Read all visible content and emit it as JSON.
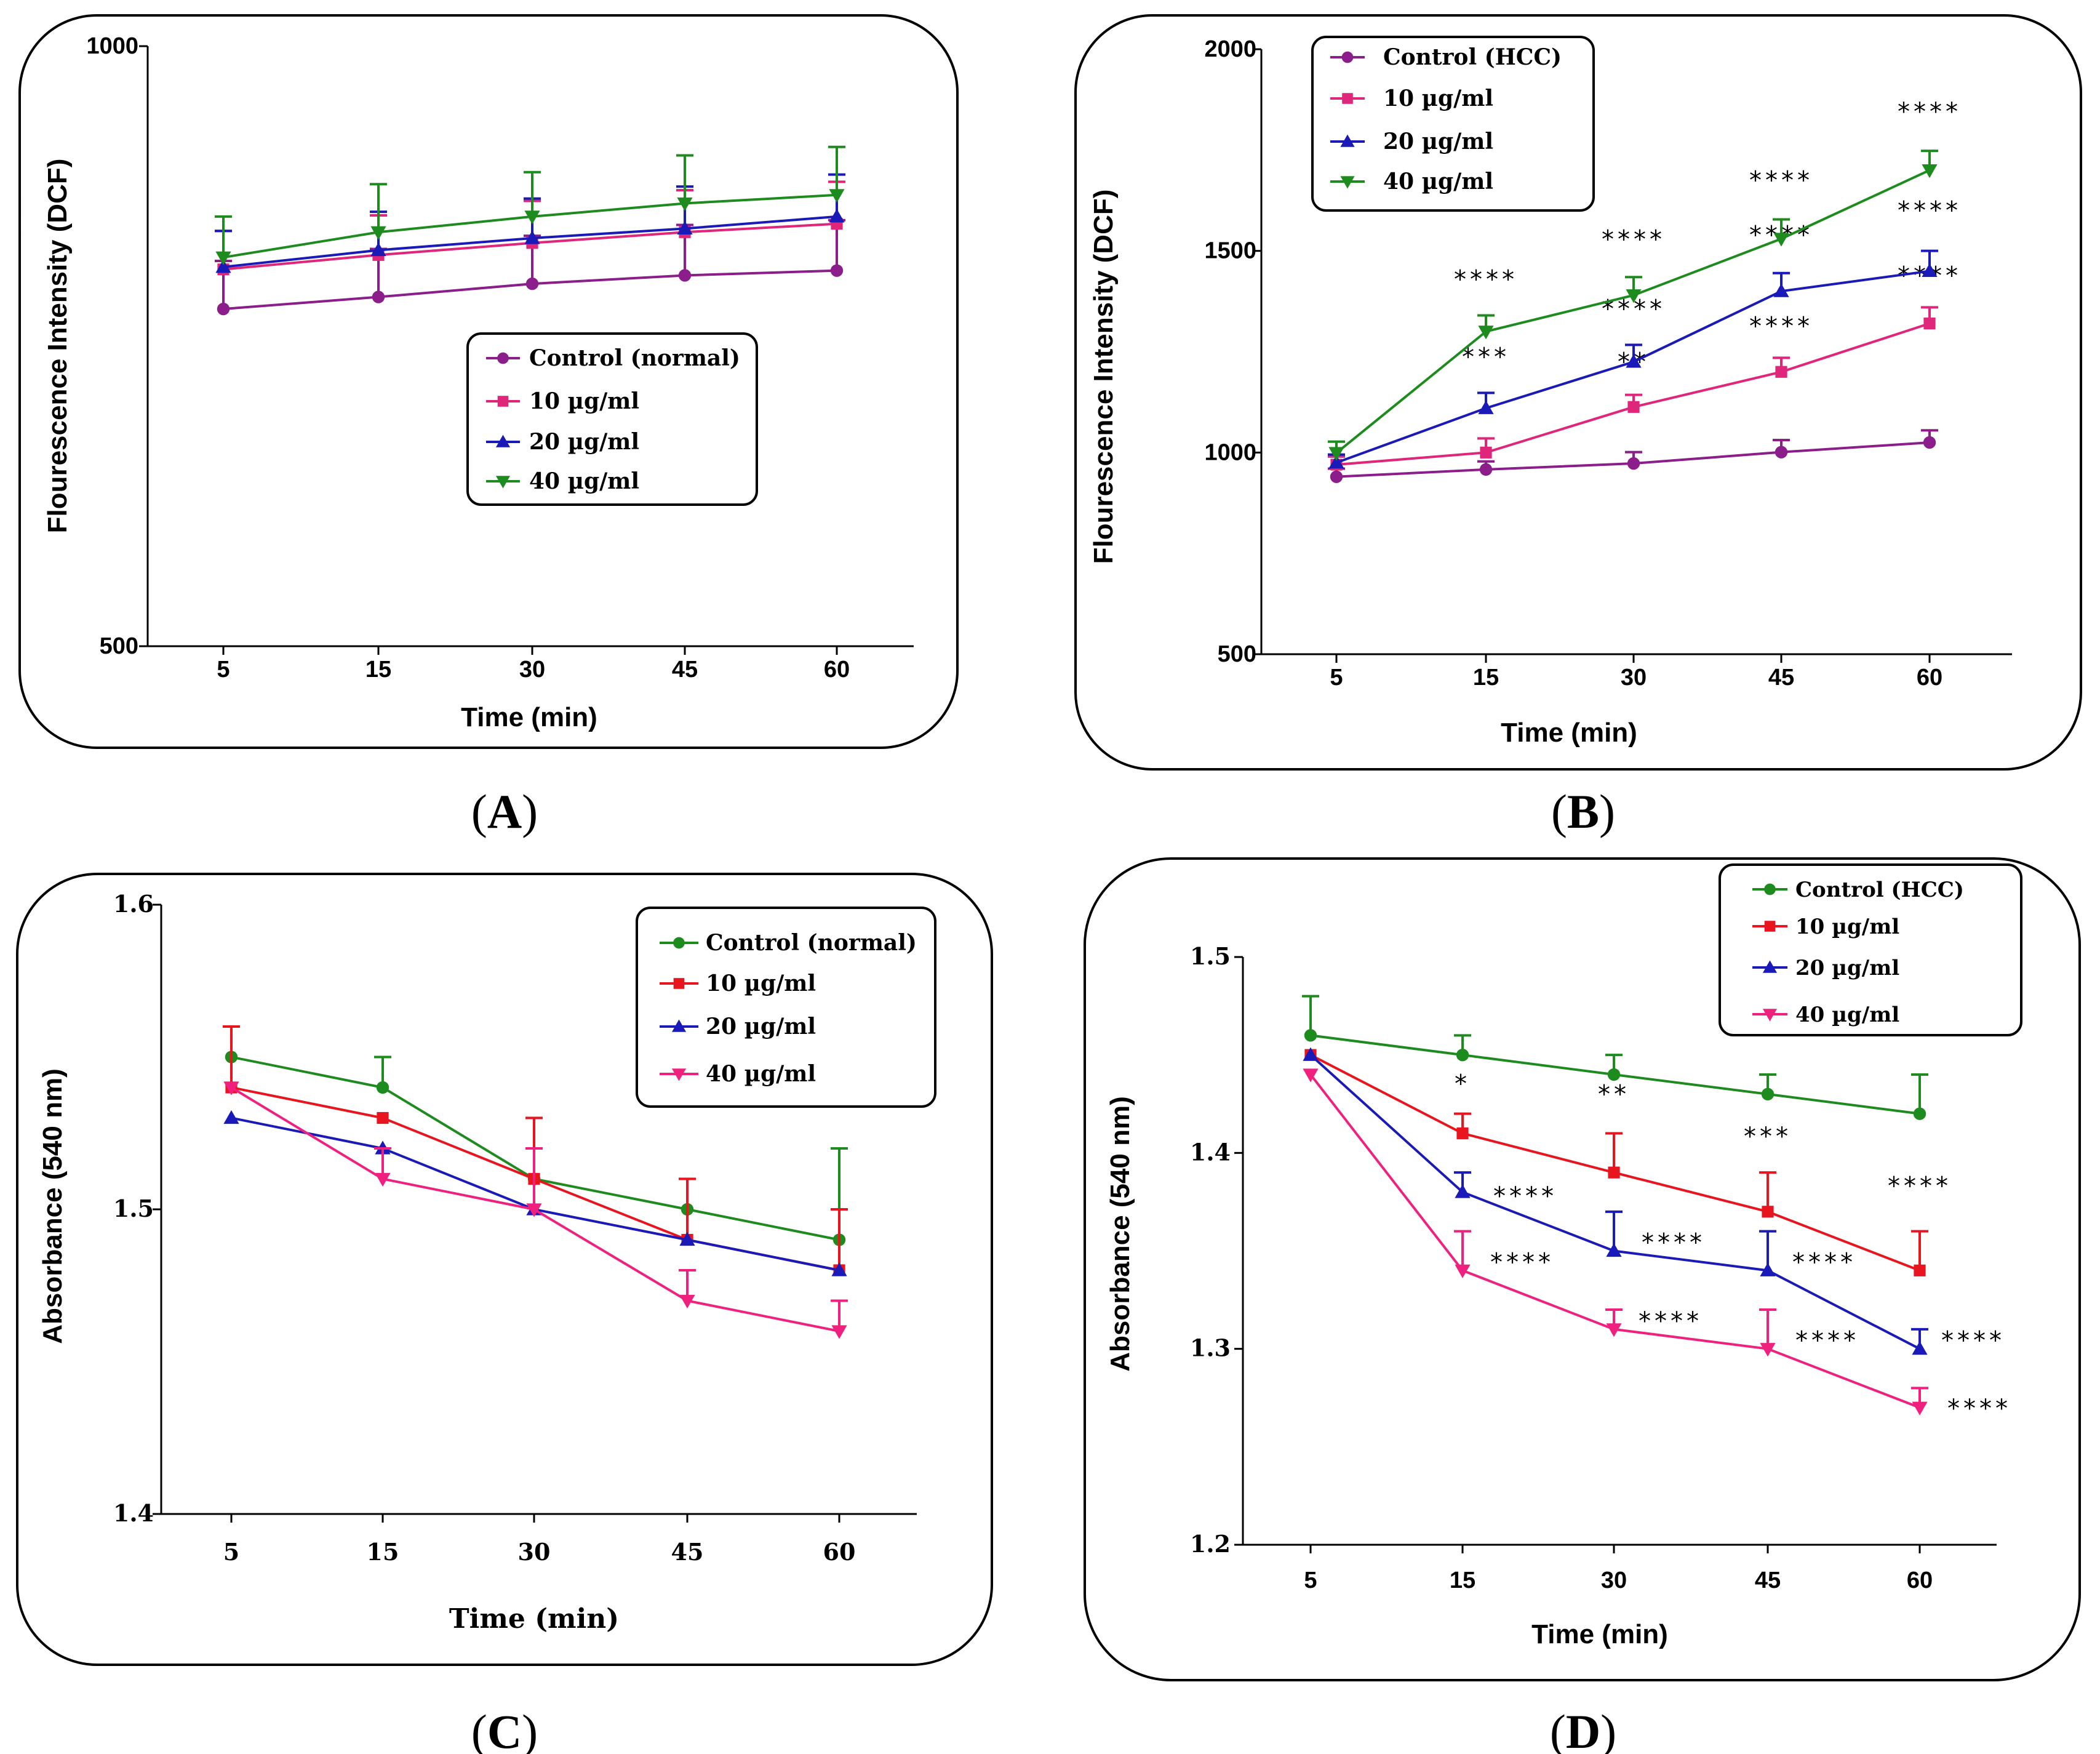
{
  "figure": {
    "panels": [
      {
        "letter": "A",
        "label": "(A)"
      },
      {
        "letter": "B",
        "label": "(B)"
      },
      {
        "letter": "C",
        "label": "(C)"
      },
      {
        "letter": "D",
        "label": "(D)"
      }
    ]
  },
  "chart_data": [
    {
      "panel": "A",
      "type": "line",
      "title": "",
      "xlabel": "Time (min)",
      "ylabel": "Flourescence Intensity (DCF)",
      "categories": [
        "5",
        "15",
        "30",
        "45",
        "60"
      ],
      "ylim": [
        500,
        1000
      ],
      "yticks": [
        500,
        1000
      ],
      "legend_position": "center-right",
      "series": [
        {
          "name": "Control (normal)",
          "color": "#8B1E8B",
          "marker": "circle",
          "values": [
            781,
            791,
            802,
            809,
            813
          ],
          "errors": [
            40,
            40,
            40,
            42,
            42
          ],
          "annotations": [
            "",
            "",
            "",
            "",
            ""
          ]
        },
        {
          "name": "10 µg/ml",
          "color": "#E0267A",
          "marker": "square",
          "values": [
            814,
            826,
            836,
            845,
            852
          ],
          "errors": [
            32,
            33,
            35,
            35,
            35
          ],
          "annotations": [
            "",
            "",
            "",
            "",
            ""
          ]
        },
        {
          "name": "20 µg/ml",
          "color": "#1A1AB8",
          "marker": "triangle-up",
          "values": [
            816,
            830,
            840,
            848,
            858
          ],
          "errors": [
            30,
            32,
            33,
            35,
            35
          ],
          "annotations": [
            "",
            "",
            "",
            "",
            ""
          ]
        },
        {
          "name": "40 µg/ml",
          "color": "#1E8B1E",
          "marker": "triangle-down",
          "values": [
            824,
            845,
            858,
            869,
            876
          ],
          "errors": [
            34,
            40,
            37,
            40,
            40
          ],
          "annotations": [
            "",
            "",
            "",
            "",
            ""
          ]
        }
      ]
    },
    {
      "panel": "B",
      "type": "line",
      "title": "",
      "xlabel": "Time (min)",
      "ylabel": "Flourescence Intensity (DCF)",
      "categories": [
        "5",
        "15",
        "30",
        "45",
        "60"
      ],
      "ylim": [
        500,
        2000
      ],
      "yticks": [
        500,
        1000,
        1500,
        2000
      ],
      "legend_position": "top-left",
      "series": [
        {
          "name": "Control (HCC)",
          "color": "#8B1E8B",
          "marker": "circle",
          "values": [
            940,
            958,
            973,
            1001,
            1025
          ],
          "errors": [
            20,
            20,
            28,
            30,
            30
          ],
          "annotations": [
            "",
            "",
            "",
            "",
            ""
          ]
        },
        {
          "name": "10 µg/ml",
          "color": "#E0267A",
          "marker": "square",
          "values": [
            970,
            1000,
            1113,
            1200,
            1320
          ],
          "errors": [
            20,
            35,
            30,
            35,
            40
          ],
          "annotations": [
            "",
            "",
            "**",
            "****",
            "****"
          ]
        },
        {
          "name": "20 µg/ml",
          "color": "#1A1AB8",
          "marker": "triangle-up",
          "values": [
            975,
            1110,
            1225,
            1400,
            1450
          ],
          "errors": [
            20,
            38,
            42,
            45,
            50
          ],
          "annotations": [
            "",
            "***",
            "****",
            "****",
            "****"
          ]
        },
        {
          "name": "40 µg/ml",
          "color": "#1E8B1E",
          "marker": "triangle-down",
          "values": [
            999,
            1300,
            1390,
            1530,
            1700
          ],
          "errors": [
            28,
            40,
            45,
            48,
            48
          ],
          "annotations": [
            "",
            "****",
            "****",
            "****",
            "****"
          ]
        }
      ]
    },
    {
      "panel": "C",
      "type": "line",
      "title": "",
      "xlabel": "Time (min)",
      "ylabel": "Absorbance (540 nm)",
      "categories": [
        "5",
        "15",
        "30",
        "45",
        "60"
      ],
      "ylim": [
        1.4,
        1.6
      ],
      "yticks": [
        1.4,
        1.5,
        1.6
      ],
      "legend_position": "top-right",
      "series": [
        {
          "name": "Control (normal)",
          "color": "#1E8B1E",
          "marker": "circle",
          "values": [
            1.55,
            1.54,
            1.51,
            1.5,
            1.49
          ],
          "errors": [
            0.0,
            0.01,
            0.0,
            0.0,
            0.03
          ],
          "annotations": [
            "",
            "",
            "",
            "",
            ""
          ]
        },
        {
          "name": "10 µg/ml",
          "color": "#E8141E",
          "marker": "square",
          "values": [
            1.54,
            1.53,
            1.51,
            1.49,
            1.48
          ],
          "errors": [
            0.02,
            0.0,
            0.02,
            0.02,
            0.02
          ],
          "annotations": [
            "",
            "",
            "",
            "",
            ""
          ]
        },
        {
          "name": "20 µg/ml",
          "color": "#1A1AB8",
          "marker": "triangle-up",
          "values": [
            1.53,
            1.52,
            1.5,
            1.49,
            1.48
          ],
          "errors": [
            0.0,
            0.0,
            0.0,
            0.0,
            0.0
          ],
          "annotations": [
            "",
            "",
            "",
            "",
            ""
          ]
        },
        {
          "name": "40 µg/ml",
          "color": "#F0207E",
          "marker": "triangle-down",
          "values": [
            1.54,
            1.51,
            1.5,
            1.47,
            1.46
          ],
          "errors": [
            0.0,
            0.01,
            0.02,
            0.01,
            0.01
          ],
          "annotations": [
            "",
            "",
            "",
            "",
            ""
          ]
        }
      ]
    },
    {
      "panel": "D",
      "type": "line",
      "title": "",
      "xlabel": "Time (min)",
      "ylabel": "Absorbance (540 nm)",
      "categories": [
        "5",
        "15",
        "30",
        "45",
        "60"
      ],
      "ylim": [
        1.2,
        1.5
      ],
      "yticks": [
        1.2,
        1.3,
        1.4,
        1.5
      ],
      "legend_position": "top-right",
      "series": [
        {
          "name": "Control (HCC)",
          "color": "#1E8B1E",
          "marker": "circle",
          "values": [
            1.46,
            1.45,
            1.44,
            1.43,
            1.42
          ],
          "errors": [
            0.02,
            0.01,
            0.01,
            0.01,
            0.02
          ],
          "annotations": [
            "",
            "",
            "",
            "",
            ""
          ]
        },
        {
          "name": "10 µg/ml",
          "color": "#E8141E",
          "marker": "square",
          "values": [
            1.45,
            1.41,
            1.39,
            1.37,
            1.34
          ],
          "errors": [
            0.0,
            0.01,
            0.02,
            0.02,
            0.02
          ],
          "annotations": [
            "",
            "*",
            "**",
            "***",
            "****"
          ]
        },
        {
          "name": "20 µg/ml",
          "color": "#1A1AB8",
          "marker": "triangle-up",
          "values": [
            1.45,
            1.38,
            1.35,
            1.34,
            1.3
          ],
          "errors": [
            0.0,
            0.01,
            0.02,
            0.02,
            0.01
          ],
          "annotations": [
            "",
            "****",
            "****",
            "****",
            "****"
          ]
        },
        {
          "name": "40 µg/ml",
          "color": "#F0207E",
          "marker": "triangle-down",
          "values": [
            1.44,
            1.34,
            1.31,
            1.3,
            1.27
          ],
          "errors": [
            0.0,
            0.02,
            0.01,
            0.02,
            0.01
          ],
          "annotations": [
            "",
            "****",
            "****",
            "****",
            "****"
          ]
        }
      ]
    }
  ]
}
